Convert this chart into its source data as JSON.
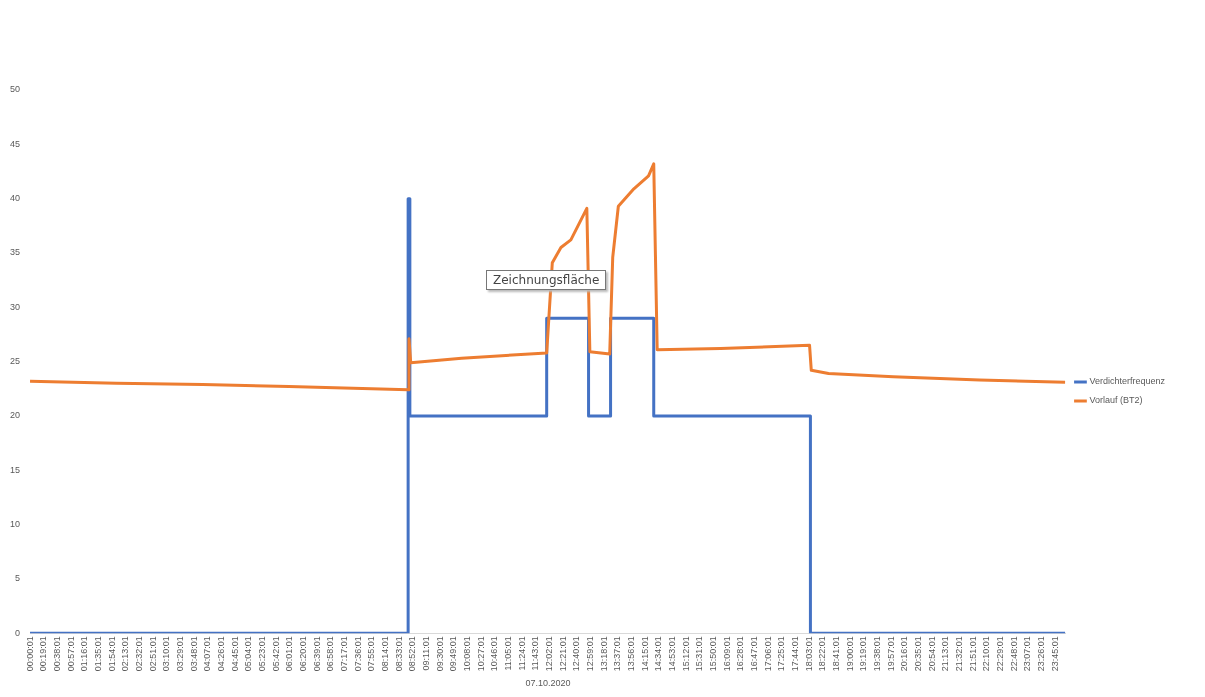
{
  "chart_data": {
    "type": "line",
    "xlabel": "07.10.2020",
    "annotations": [
      "Zeichnungsfläche"
    ],
    "xlim": [
      0,
      24
    ],
    "ylim": [
      0,
      50
    ],
    "yticks": [
      0,
      5,
      10,
      15,
      20,
      25,
      30,
      35,
      40,
      45,
      50
    ],
    "xticks": [
      {
        "value": 0.0003,
        "label": "00:00:01"
      },
      {
        "value": 0.3169,
        "label": "00:19:01"
      },
      {
        "value": 0.6336,
        "label": "00:38:01"
      },
      {
        "value": 0.9503,
        "label": "00:57:01"
      },
      {
        "value": 1.2669,
        "label": "01:16:01"
      },
      {
        "value": 1.5836,
        "label": "01:35:01"
      },
      {
        "value": 1.9003,
        "label": "01:54:01"
      },
      {
        "value": 2.2169,
        "label": "02:13:01"
      },
      {
        "value": 2.5336,
        "label": "02:32:01"
      },
      {
        "value": 2.8503,
        "label": "02:51:01"
      },
      {
        "value": 3.1669,
        "label": "03:10:01"
      },
      {
        "value": 3.4836,
        "label": "03:29:01"
      },
      {
        "value": 3.8003,
        "label": "03:48:01"
      },
      {
        "value": 4.1169,
        "label": "04:07:01"
      },
      {
        "value": 4.4336,
        "label": "04:26:01"
      },
      {
        "value": 4.7503,
        "label": "04:45:01"
      },
      {
        "value": 5.0669,
        "label": "05:04:01"
      },
      {
        "value": 5.3836,
        "label": "05:23:01"
      },
      {
        "value": 5.7003,
        "label": "05:42:01"
      },
      {
        "value": 6.0169,
        "label": "06:01:01"
      },
      {
        "value": 6.3336,
        "label": "06:20:01"
      },
      {
        "value": 6.6503,
        "label": "06:39:01"
      },
      {
        "value": 6.9669,
        "label": "06:58:01"
      },
      {
        "value": 7.2836,
        "label": "07:17:01"
      },
      {
        "value": 7.6003,
        "label": "07:36:01"
      },
      {
        "value": 7.9169,
        "label": "07:55:01"
      },
      {
        "value": 8.2336,
        "label": "08:14:01"
      },
      {
        "value": 8.5503,
        "label": "08:33:01"
      },
      {
        "value": 8.8669,
        "label": "08:52:01"
      },
      {
        "value": 9.1836,
        "label": "09:11:01"
      },
      {
        "value": 9.5003,
        "label": "09:30:01"
      },
      {
        "value": 9.8169,
        "label": "09:49:01"
      },
      {
        "value": 10.1336,
        "label": "10:08:01"
      },
      {
        "value": 10.4503,
        "label": "10:27:01"
      },
      {
        "value": 10.7669,
        "label": "10:46:01"
      },
      {
        "value": 11.0836,
        "label": "11:05:01"
      },
      {
        "value": 11.4003,
        "label": "11:24:01"
      },
      {
        "value": 11.7169,
        "label": "11:43:01"
      },
      {
        "value": 12.0336,
        "label": "12:02:01"
      },
      {
        "value": 12.3503,
        "label": "12:21:01"
      },
      {
        "value": 12.6669,
        "label": "12:40:01"
      },
      {
        "value": 12.9836,
        "label": "12:59:01"
      },
      {
        "value": 13.3003,
        "label": "13:18:01"
      },
      {
        "value": 13.6169,
        "label": "13:37:01"
      },
      {
        "value": 13.9336,
        "label": "13:56:01"
      },
      {
        "value": 14.2503,
        "label": "14:15:01"
      },
      {
        "value": 14.5669,
        "label": "14:34:01"
      },
      {
        "value": 14.8836,
        "label": "14:53:01"
      },
      {
        "value": 15.2003,
        "label": "15:12:01"
      },
      {
        "value": 15.5169,
        "label": "15:31:01"
      },
      {
        "value": 15.8336,
        "label": "15:50:01"
      },
      {
        "value": 16.1503,
        "label": "16:09:01"
      },
      {
        "value": 16.4669,
        "label": "16:28:01"
      },
      {
        "value": 16.7836,
        "label": "16:47:01"
      },
      {
        "value": 17.1003,
        "label": "17:06:01"
      },
      {
        "value": 17.4169,
        "label": "17:25:01"
      },
      {
        "value": 17.7336,
        "label": "17:44:01"
      },
      {
        "value": 18.0503,
        "label": "18:03:01"
      },
      {
        "value": 18.3669,
        "label": "18:22:01"
      },
      {
        "value": 18.6836,
        "label": "18:41:01"
      },
      {
        "value": 19.0003,
        "label": "19:00:01"
      },
      {
        "value": 19.3169,
        "label": "19:19:01"
      },
      {
        "value": 19.6336,
        "label": "19:38:01"
      },
      {
        "value": 19.9503,
        "label": "19:57:01"
      },
      {
        "value": 20.2669,
        "label": "20:16:01"
      },
      {
        "value": 20.5836,
        "label": "20:35:01"
      },
      {
        "value": 20.9003,
        "label": "20:54:01"
      },
      {
        "value": 21.2169,
        "label": "21:13:01"
      },
      {
        "value": 21.5336,
        "label": "21:32:01"
      },
      {
        "value": 21.8503,
        "label": "21:51:01"
      },
      {
        "value": 22.1669,
        "label": "22:10:01"
      },
      {
        "value": 22.4836,
        "label": "22:29:01"
      },
      {
        "value": 22.8003,
        "label": "22:48:01"
      },
      {
        "value": 23.1169,
        "label": "23:07:01"
      },
      {
        "value": 23.4336,
        "label": "23:26:01"
      },
      {
        "value": 23.7503,
        "label": "23:45:01"
      }
    ],
    "grid": false,
    "legend": "right",
    "marker": "none",
    "line_style": "solid",
    "series": [
      {
        "name": "Verdichterfrequenz",
        "color": "#4472c4",
        "x": [
          0.0003,
          8.76,
          8.76,
          8.8,
          8.8,
          11.97,
          11.97,
          12.94,
          12.94,
          13.45,
          13.45,
          14.45,
          14.45,
          18.08,
          18.08,
          23.98
        ],
        "values": [
          0,
          0,
          40,
          40,
          20,
          20,
          29,
          29,
          20,
          20,
          29,
          29,
          20,
          20,
          0,
          0
        ]
      },
      {
        "name": "Vorlauf (BT2)",
        "color": "#ed7d31",
        "x": [
          0.0003,
          2,
          4,
          6,
          8.76,
          8.78,
          8.82,
          10,
          11.97,
          12.1,
          12.3,
          12.53,
          12.9,
          12.97,
          13.43,
          13.5,
          13.63,
          13.99,
          14.33,
          14.45,
          14.53,
          16,
          18.06,
          18.1,
          18.5,
          20,
          22,
          23.98
        ],
        "values": [
          23.2,
          23.0,
          22.9,
          22.7,
          22.4,
          27.1,
          24.9,
          25.3,
          25.8,
          34.1,
          35.5,
          36.2,
          39.1,
          25.9,
          25.7,
          34.6,
          39.3,
          40.9,
          42.1,
          43.2,
          26.1,
          26.2,
          26.5,
          24.2,
          23.9,
          23.6,
          23.3,
          23.1
        ]
      }
    ]
  }
}
